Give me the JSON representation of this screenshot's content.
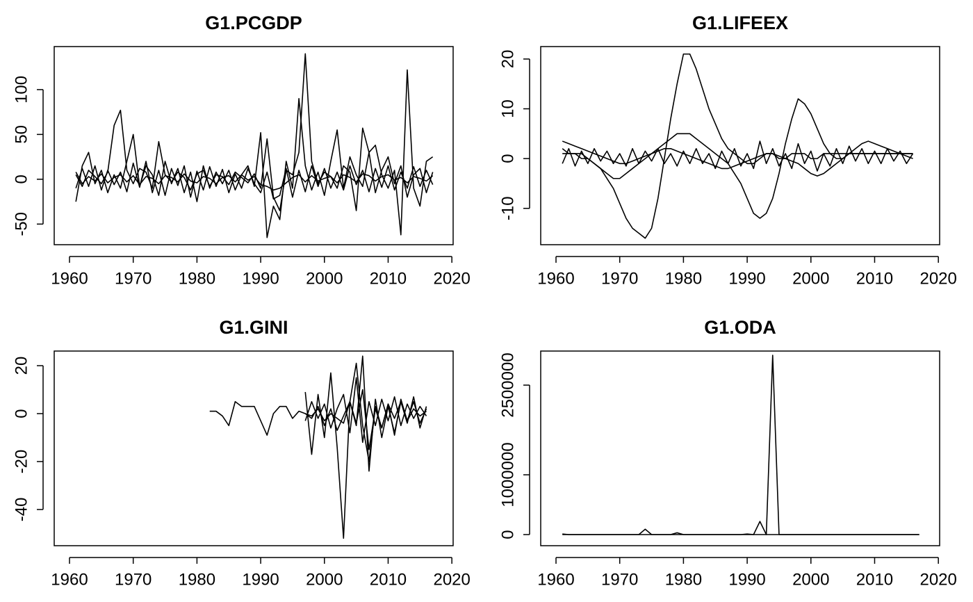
{
  "chart_data": [
    {
      "type": "line",
      "title": "G1.PCGDP",
      "x": [
        1961,
        1962,
        1963,
        1964,
        1965,
        1966,
        1967,
        1968,
        1969,
        1970,
        1971,
        1972,
        1973,
        1974,
        1975,
        1976,
        1977,
        1978,
        1979,
        1980,
        1981,
        1982,
        1983,
        1984,
        1985,
        1986,
        1987,
        1988,
        1989,
        1990,
        1991,
        1992,
        1993,
        1994,
        1995,
        1996,
        1997,
        1998,
        1999,
        2000,
        2001,
        2002,
        2003,
        2004,
        2005,
        2006,
        2007,
        2008,
        2009,
        2010,
        2011,
        2012,
        2013,
        2014,
        2015,
        2016,
        2017
      ],
      "xlim": [
        1957.6,
        2020.2
      ],
      "xticks": [
        1960,
        1970,
        1980,
        1990,
        2000,
        2010,
        2020
      ],
      "ylim": [
        -73,
        148
      ],
      "yticks": [
        -50,
        0,
        50,
        100
      ],
      "series": [
        {
          "color": "#000000",
          "values": [
            5,
            -8,
            10,
            3,
            -5,
            8,
            60,
            77,
            10,
            -5,
            12,
            8,
            -10,
            42,
            5,
            -3,
            8,
            2,
            -12,
            6,
            10,
            -8,
            5,
            3,
            -6,
            8,
            2,
            -4,
            6,
            -10,
            45,
            -20,
            -35,
            10,
            5,
            30,
            140,
            20,
            -5,
            8,
            3,
            -10,
            15,
            8,
            -35,
            57,
            30,
            38,
            5,
            -10,
            10,
            -62,
            122,
            -10,
            -30,
            20,
            25
          ]
        },
        {
          "color": "#000000",
          "values": [
            -25,
            15,
            30,
            -5,
            10,
            -15,
            5,
            -10,
            20,
            50,
            -8,
            15,
            5,
            -18,
            20,
            -5,
            12,
            -15,
            8,
            -25,
            15,
            -10,
            8,
            -5,
            10,
            -12,
            5,
            15,
            -8,
            52,
            -65,
            -30,
            -45,
            20,
            -10,
            90,
            15,
            -12,
            8,
            -18,
            20,
            55,
            -10,
            25,
            5,
            -8,
            30,
            -15,
            10,
            25,
            -5,
            15,
            -20,
            5,
            12,
            -15,
            8
          ]
        },
        {
          "color": "#000000",
          "values": [
            8,
            -5,
            3,
            -2,
            6,
            -4,
            2,
            5,
            -3,
            4,
            -6,
            3,
            1,
            -5,
            4,
            2,
            -3,
            6,
            -2,
            -4,
            3,
            1,
            -5,
            2,
            4,
            -3,
            5,
            -1,
            3,
            -6,
            -8,
            -12,
            -10,
            -4,
            2,
            5,
            -3,
            4,
            -2,
            1,
            3,
            -4,
            5,
            2,
            -3,
            6,
            4,
            -2,
            3,
            5,
            -1,
            2,
            -4,
            3,
            1,
            -2,
            4
          ]
        },
        {
          "color": "#000000",
          "values": [
            -10,
            12,
            -8,
            15,
            -12,
            10,
            -6,
            8,
            -14,
            18,
            -9,
            20,
            -15,
            10,
            -18,
            12,
            -7,
            15,
            -20,
            9,
            -12,
            14,
            -8,
            11,
            -15,
            6,
            -10,
            12,
            -5,
            -15,
            8,
            -22,
            -18,
            12,
            -20,
            10,
            -14,
            15,
            -8,
            12,
            -10,
            8,
            -12,
            15,
            -6,
            10,
            -14,
            12,
            -9,
            15,
            -12,
            8,
            -10,
            14,
            -8,
            10,
            -6
          ]
        }
      ]
    },
    {
      "type": "line",
      "title": "G1.LIFEEX",
      "x": [
        1961,
        1962,
        1963,
        1964,
        1965,
        1966,
        1967,
        1968,
        1969,
        1970,
        1971,
        1972,
        1973,
        1974,
        1975,
        1976,
        1977,
        1978,
        1979,
        1980,
        1981,
        1982,
        1983,
        1984,
        1985,
        1986,
        1987,
        1988,
        1989,
        1990,
        1991,
        1992,
        1993,
        1994,
        1995,
        1996,
        1997,
        1998,
        1999,
        2000,
        2001,
        2002,
        2003,
        2004,
        2005,
        2006,
        2007,
        2008,
        2009,
        2010,
        2011,
        2012,
        2013,
        2014,
        2015,
        2016
      ],
      "xlim": [
        1957.6,
        2020.2
      ],
      "xticks": [
        1960,
        1970,
        1980,
        1990,
        2000,
        2010,
        2020
      ],
      "ylim": [
        -17.3,
        22.5
      ],
      "yticks": [
        -10,
        0,
        10,
        20
      ],
      "series": [
        {
          "color": "#000000",
          "values": [
            1,
            1,
            1,
            0,
            0,
            -1,
            -2,
            -4,
            -6,
            -9,
            -12,
            -14,
            -15,
            -16,
            -14,
            -8,
            0,
            8,
            15,
            21,
            21,
            18,
            14,
            10,
            7,
            4,
            2,
            1,
            0,
            -1,
            -1,
            0,
            1,
            1,
            0,
            0,
            1,
            1,
            1,
            0,
            0,
            1,
            1,
            1,
            1,
            1,
            1,
            1,
            1,
            1,
            1,
            1,
            1,
            1,
            1,
            1
          ]
        },
        {
          "color": "#000000",
          "values": [
            2,
            1,
            1,
            1,
            0,
            -1,
            -2,
            -3,
            -4,
            -4,
            -3,
            -2,
            -1,
            0,
            1,
            2,
            3,
            4,
            5,
            5,
            5,
            4,
            3,
            2,
            1,
            0,
            -1,
            -3,
            -5,
            -8,
            -11,
            -12,
            -11,
            -8,
            -3,
            3,
            8,
            12,
            11,
            9,
            6,
            3,
            1,
            0,
            0,
            1,
            1,
            1,
            1,
            1,
            1,
            1,
            1,
            1,
            1,
            1
          ]
        },
        {
          "color": "#000000",
          "values": [
            3.5,
            3,
            2.5,
            2,
            1.5,
            1,
            0.5,
            0,
            -0.5,
            -1,
            -1,
            -0.5,
            0,
            0.5,
            1,
            1.5,
            2,
            2,
            1.5,
            1,
            0.5,
            0,
            -0.5,
            -1,
            -1.5,
            -2,
            -2,
            -1.5,
            -1,
            -0.5,
            0,
            0.5,
            1,
            1,
            0.5,
            0,
            -0.5,
            -1,
            -2,
            -3,
            -3.5,
            -3,
            -2,
            -1,
            0,
            1,
            2,
            3,
            3.5,
            3,
            2.5,
            2,
            1.5,
            1,
            0.5,
            0
          ]
        },
        {
          "color": "#000000",
          "values": [
            -1,
            2,
            -1.5,
            1.5,
            -1,
            2,
            -0.5,
            1.5,
            -1,
            1,
            -1.5,
            2,
            -1,
            1.5,
            -0.5,
            2,
            -1,
            1,
            -1.5,
            1.5,
            -1,
            2,
            -1,
            1,
            -2,
            1.5,
            -1,
            2,
            -1.5,
            1,
            -2,
            3.5,
            -1,
            2,
            -1.5,
            1,
            -2,
            3,
            -1,
            1.5,
            -2.5,
            1,
            -1.5,
            2,
            -1,
            2.5,
            -0.5,
            2,
            -1,
            1.5,
            -1,
            2,
            -0.5,
            1.5,
            -1,
            1
          ]
        }
      ]
    },
    {
      "type": "line",
      "title": "G1.GINI",
      "x": [
        1982,
        1983,
        1984,
        1985,
        1986,
        1987,
        1988,
        1989,
        1990,
        1991,
        1992,
        1993,
        1994,
        1995,
        1996,
        1997,
        1998,
        1999,
        2000,
        2001,
        2002,
        2003,
        2004,
        2005,
        2006,
        2007,
        2008,
        2009,
        2010,
        2011,
        2012,
        2013,
        2014,
        2015,
        2016
      ],
      "xlim": [
        1957.6,
        2020.2
      ],
      "xticks": [
        1960,
        1970,
        1980,
        1990,
        2000,
        2010,
        2020
      ],
      "ylim": [
        -55.1,
        26.1
      ],
      "yticks": [
        -40,
        -20,
        0,
        20
      ],
      "series": [
        {
          "color": "#000000",
          "values": [
            1,
            1,
            -1,
            -5,
            5,
            3,
            3,
            3,
            -3,
            -9,
            0,
            3,
            3,
            -2,
            1,
            0,
            -1,
            2,
            -3,
            0,
            -2,
            -4,
            5,
            21,
            -5,
            -20,
            3,
            -6,
            4,
            -2,
            5,
            -3,
            2,
            -1,
            1
          ]
        },
        {
          "color": "#000000",
          "values": [
            null,
            null,
            null,
            null,
            null,
            null,
            null,
            null,
            null,
            null,
            null,
            null,
            null,
            null,
            null,
            9,
            -17,
            8,
            -10,
            17,
            -14,
            -52,
            5,
            -5,
            24,
            -24,
            6,
            -10,
            3,
            -8,
            5,
            -4,
            7,
            -6,
            3
          ]
        },
        {
          "color": "#000000",
          "values": [
            null,
            null,
            null,
            null,
            null,
            null,
            null,
            null,
            null,
            null,
            null,
            null,
            null,
            null,
            null,
            -3,
            5,
            -2,
            4,
            -6,
            2,
            8,
            -8,
            15,
            -12,
            5,
            -5,
            6,
            -3,
            7,
            -5,
            4,
            -2,
            3,
            -1
          ]
        },
        {
          "color": "#000000",
          "values": [
            null,
            null,
            null,
            null,
            null,
            null,
            null,
            null,
            null,
            null,
            null,
            null,
            null,
            null,
            null,
            0,
            -2,
            3,
            -5,
            2,
            -7,
            -1,
            5,
            -4,
            10,
            -15,
            2,
            -6,
            4,
            -9,
            6,
            -3,
            5,
            -4,
            2
          ]
        }
      ]
    },
    {
      "type": "line",
      "title": "G1.ODA",
      "x": [
        1961,
        1962,
        1963,
        1964,
        1965,
        1966,
        1967,
        1968,
        1969,
        1970,
        1971,
        1972,
        1973,
        1974,
        1975,
        1976,
        1977,
        1978,
        1979,
        1980,
        1981,
        1982,
        1983,
        1984,
        1985,
        1986,
        1987,
        1988,
        1989,
        1990,
        1991,
        1992,
        1993,
        1994,
        1995,
        1996,
        1997,
        1998,
        1999,
        2000,
        2001,
        2002,
        2003,
        2004,
        2005,
        2006,
        2007,
        2008,
        2009,
        2010,
        2011,
        2012,
        2013,
        2014,
        2015,
        2016,
        2017
      ],
      "xlim": [
        1957.6,
        2020.2
      ],
      "xticks": [
        1960,
        1970,
        1980,
        1990,
        2000,
        2010,
        2020
      ],
      "ylim": [
        -186000,
        3070000
      ],
      "yticks": [
        0,
        1000000,
        2500000
      ],
      "series": [
        {
          "color": "#000000",
          "values": [
            0,
            0,
            0,
            0,
            0,
            0,
            0,
            0,
            0,
            0,
            0,
            0,
            0,
            0,
            0,
            0,
            0,
            0,
            0,
            0,
            0,
            0,
            0,
            0,
            0,
            0,
            0,
            0,
            0,
            0,
            0,
            220000,
            0,
            3000000,
            0,
            0,
            0,
            0,
            0,
            0,
            0,
            0,
            0,
            0,
            0,
            0,
            0,
            0,
            0,
            0,
            0,
            0,
            0,
            0,
            0,
            0,
            0
          ]
        },
        {
          "color": "#000000",
          "values": [
            10000,
            0,
            0,
            0,
            0,
            0,
            0,
            0,
            0,
            0,
            0,
            0,
            0,
            90000,
            0,
            0,
            0,
            0,
            30000,
            0,
            0,
            0,
            0,
            0,
            0,
            0,
            0,
            0,
            0,
            10000,
            0,
            0,
            0,
            0,
            0,
            0,
            0,
            0,
            0,
            0,
            0,
            0,
            0,
            0,
            0,
            0,
            0,
            0,
            0,
            0,
            0,
            0,
            0,
            0,
            0,
            0,
            0
          ]
        }
      ]
    }
  ]
}
